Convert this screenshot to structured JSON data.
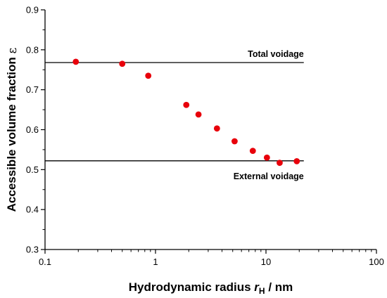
{
  "chart_data": {
    "type": "scatter",
    "xscale": "log",
    "xlim": [
      0.1,
      100
    ],
    "ylim": [
      0.3,
      0.9
    ],
    "xticks": [
      0.1,
      1,
      10,
      100
    ],
    "xtick_labels": [
      "0.1",
      "1",
      "10",
      "100"
    ],
    "yticks": [
      0.3,
      0.4,
      0.5,
      0.6,
      0.7,
      0.8,
      0.9
    ],
    "ytick_labels": [
      "0.3",
      "0.4",
      "0.5",
      "0.6",
      "0.7",
      "0.8",
      "0.9"
    ],
    "xlabel_main": "Hydrodynamic radius ",
    "xlabel_var": "r",
    "xlabel_sub": "H",
    "xlabel_unit": " / nm",
    "ylabel_main": "Accessible volume fraction ",
    "ylabel_symbol": "ε",
    "grid": false,
    "marker_color": "#e8000b",
    "series": [
      {
        "x": [
          0.19,
          0.5,
          0.86,
          1.9,
          2.45,
          3.6,
          5.2,
          7.6,
          10.2,
          13.3,
          19.0
        ],
        "y": [
          0.77,
          0.765,
          0.735,
          0.662,
          0.638,
          0.603,
          0.571,
          0.547,
          0.53,
          0.517,
          0.521
        ]
      }
    ],
    "reference_lines": [
      {
        "label": "Total voidage",
        "y": 0.768,
        "x_range": [
          0.1,
          22
        ]
      },
      {
        "label": "External voidage",
        "y": 0.522,
        "x_range": [
          0.1,
          22
        ]
      }
    ]
  }
}
